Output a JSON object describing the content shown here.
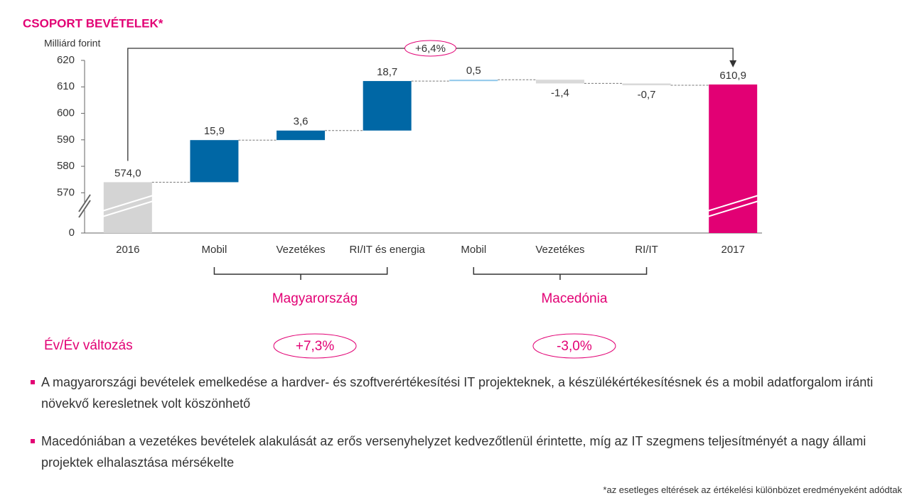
{
  "chart_data": {
    "type": "waterfall",
    "title": "CSOPORT BEVÉTELEK*",
    "y_label": "Milliárd forint",
    "categories": [
      "2016",
      "Mobil",
      "Vezetékes",
      "RI/IT és energia",
      "Mobil",
      "Vezetékes",
      "RI/IT",
      "2017"
    ],
    "measure": [
      "total",
      "relative",
      "relative",
      "relative",
      "relative",
      "relative",
      "relative",
      "total"
    ],
    "values": [
      574.0,
      15.9,
      3.6,
      18.7,
      0.5,
      -1.4,
      -0.7,
      610.9
    ],
    "value_labels": [
      "574,0",
      "15,9",
      "3,6",
      "18,7",
      "0,5",
      "-1,4",
      "-0,7",
      "610,9"
    ],
    "colors": [
      "#d4d4d4",
      "#0067a5",
      "#0067a5",
      "#0067a5",
      "#8ec6ea",
      "#d9d9d9",
      "#d9d9d9",
      "#e20074"
    ],
    "ylim": [
      565,
      620
    ],
    "yticks": [
      0,
      570,
      580,
      590,
      600,
      610,
      620
    ],
    "axis_break": true,
    "total_change": "+6,4%",
    "change_label": "Év/Év változás",
    "groups": [
      {
        "label": "Magyarország",
        "change": "+7,3%",
        "from": 1,
        "to": 3
      },
      {
        "label": "Macedónia",
        "change": "-3,0%",
        "from": 4,
        "to": 6
      }
    ]
  },
  "bullets": [
    "A magyarországi bevételek emelkedése a hardver- és szoftverértékesítési IT projekteknek, a készülékértékesítésnek és a mobil adatforgalom iránti növekvő keresletnek volt köszönhető",
    "Macedóniában a vezetékes bevételek alakulását az erős versenyhelyzet kedvezőtlenül érintette, míg az IT szegmens teljesítményét a nagy állami projektek elhalasztása mérsékelte"
  ],
  "footnote": "*az esetleges eltérések az értékelési különbözet eredményeként adódtak"
}
